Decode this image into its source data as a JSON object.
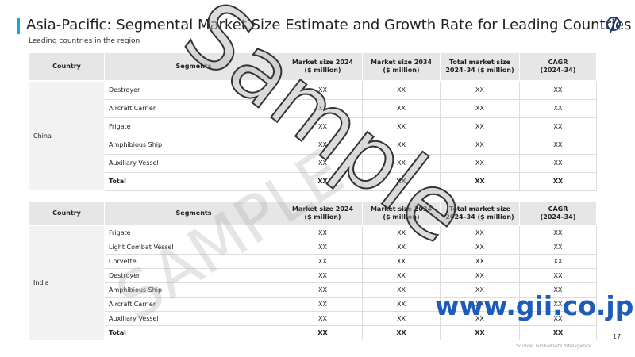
{
  "header": {
    "title": "Asia-Pacific: Segmental Market Size Estimate and Growth Rate for Leading Countries",
    "subtitle": "Leading countries in the region"
  },
  "tables": [
    {
      "columns": [
        "Country",
        "Segments",
        "Market size 2024\n($ million)",
        "Market size 2034\n($ million)",
        "Total market size\n2024–34 ($ million)",
        "CAGR\n(2024–34)"
      ],
      "country": "China",
      "rows": [
        [
          "Destroyer",
          "XX",
          "XX",
          "XX",
          "XX"
        ],
        [
          "Aircraft Carrier",
          "XX",
          "XX",
          "XX",
          "XX"
        ],
        [
          "Frigate",
          "XX",
          "XX",
          "XX",
          "XX"
        ],
        [
          "Amphibious Ship",
          "XX",
          "XX",
          "XX",
          "XX"
        ],
        [
          "Auxiliary Vessel",
          "XX",
          "XX",
          "XX",
          "XX"
        ],
        [
          "Total",
          "XX",
          "XX",
          "XX",
          "XX"
        ]
      ]
    },
    {
      "columns": [
        "Country",
        "Segments",
        "Market size 2024\n($ million)",
        "Market size 2034\n($ million)",
        "Total market size\n2024–34 ($ million)",
        "CAGR\n(2024–34)"
      ],
      "country": "India",
      "rows": [
        [
          "Frigate",
          "XX",
          "XX",
          "XX",
          "XX"
        ],
        [
          "Light Combat Vessel",
          "XX",
          "XX",
          "XX",
          "XX"
        ],
        [
          "Corvette",
          "XX",
          "XX",
          "XX",
          "XX"
        ],
        [
          "Destroyer",
          "XX",
          "XX",
          "XX",
          "XX"
        ],
        [
          "Amphibious Ship",
          "XX",
          "XX",
          "XX",
          "XX"
        ],
        [
          "Aircraft Carrier",
          "XX",
          "XX",
          "XX",
          "XX"
        ],
        [
          "Auxiliary Vessel",
          "XX",
          "XX",
          "XX",
          "XX"
        ],
        [
          "Total",
          "XX",
          "XX",
          "XX",
          "XX"
        ]
      ]
    }
  ],
  "watermarks": {
    "main": "Sample",
    "secondary": "SAMPLE"
  },
  "footer": {
    "url": "www.gii.co.jp",
    "source": "Source: GlobalData Intelligence",
    "page": "17"
  }
}
